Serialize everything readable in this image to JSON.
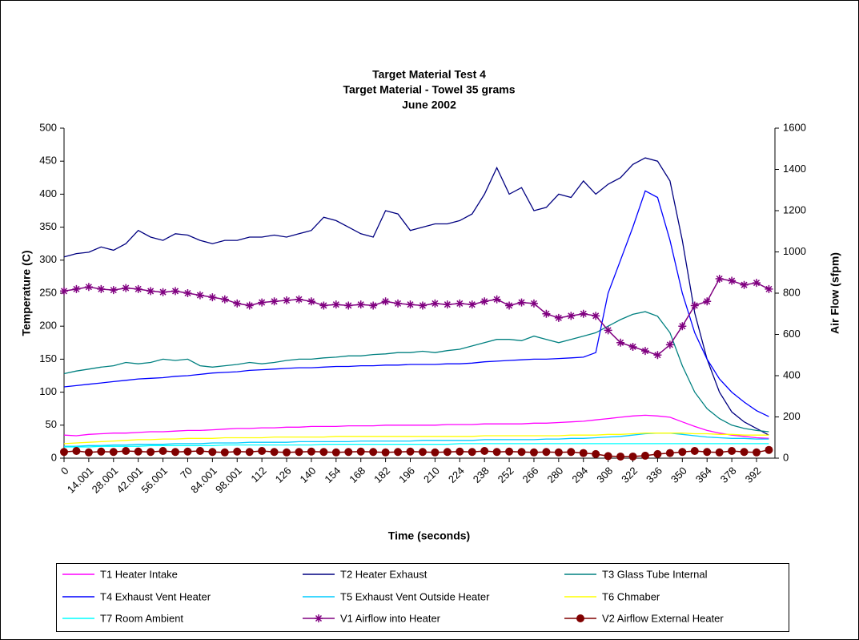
{
  "chart_data": {
    "type": "line",
    "title": [
      "Target Material Test 4",
      "Target Material - Towel 35 grams",
      "June 2002"
    ],
    "x_label": "Time (seconds)",
    "y_label": "Temperature (C)",
    "y2_label": "Air Flow (sfpm)",
    "categories": [
      "0",
      null,
      "14.001",
      null,
      "28.001",
      null,
      "42.001",
      null,
      "56.001",
      null,
      "70",
      null,
      "84.001",
      null,
      "98.001",
      null,
      "112",
      null,
      "126",
      null,
      "140",
      null,
      "154",
      null,
      "168",
      null,
      "182",
      null,
      "196",
      null,
      "210",
      null,
      "224",
      null,
      "238",
      null,
      "252",
      null,
      "266",
      null,
      "280",
      null,
      "294",
      null,
      "308",
      null,
      "322",
      null,
      "336",
      null,
      "350",
      null,
      "364",
      null,
      "378",
      null,
      "392",
      null
    ],
    "ylim": [
      0,
      500
    ],
    "yticks": [
      0,
      50,
      100,
      150,
      200,
      250,
      300,
      350,
      400,
      450,
      500
    ],
    "y2lim": [
      0,
      1600
    ],
    "y2ticks": [
      0,
      200,
      400,
      600,
      800,
      1000,
      1200,
      1400,
      1600
    ],
    "grid": false,
    "legend": "bottom",
    "series": [
      {
        "name": "T1 Heater Intake",
        "color": "#ff00ff",
        "values": [
          35,
          34,
          36,
          37,
          38,
          38,
          39,
          40,
          40,
          41,
          42,
          42,
          43,
          44,
          45,
          45,
          46,
          46,
          47,
          47,
          48,
          48,
          48,
          49,
          49,
          49,
          50,
          50,
          50,
          50,
          50,
          51,
          51,
          51,
          52,
          52,
          52,
          52,
          53,
          53,
          54,
          55,
          56,
          58,
          60,
          62,
          64,
          65,
          64,
          62,
          55,
          48,
          42,
          38,
          35,
          33,
          31,
          30
        ]
      },
      {
        "name": "T2 Heater Exhaust",
        "color": "#000080",
        "values": [
          305,
          310,
          312,
          320,
          315,
          325,
          345,
          335,
          330,
          340,
          338,
          330,
          325,
          330,
          330,
          335,
          335,
          338,
          335,
          340,
          345,
          365,
          360,
          350,
          340,
          335,
          375,
          370,
          345,
          350,
          355,
          355,
          360,
          370,
          400,
          440,
          400,
          410,
          375,
          380,
          400,
          395,
          420,
          400,
          415,
          425,
          445,
          455,
          450,
          420,
          330,
          220,
          150,
          100,
          70,
          55,
          45,
          35
        ]
      },
      {
        "name": "T3 Glass Tube Internal",
        "color": "#008080",
        "values": [
          128,
          132,
          135,
          138,
          140,
          145,
          143,
          145,
          150,
          148,
          150,
          140,
          138,
          140,
          142,
          145,
          143,
          145,
          148,
          150,
          150,
          152,
          153,
          155,
          155,
          157,
          158,
          160,
          160,
          162,
          160,
          163,
          165,
          170,
          175,
          180,
          180,
          178,
          185,
          180,
          175,
          180,
          185,
          190,
          200,
          210,
          218,
          222,
          215,
          190,
          140,
          100,
          75,
          60,
          50,
          45,
          42,
          40
        ]
      },
      {
        "name": "T4 Exhaust Vent Heater",
        "color": "#0000ff",
        "values": [
          108,
          110,
          112,
          114,
          116,
          118,
          120,
          121,
          122,
          124,
          125,
          127,
          129,
          130,
          131,
          133,
          134,
          135,
          136,
          137,
          137,
          138,
          139,
          139,
          140,
          140,
          141,
          141,
          142,
          142,
          142,
          143,
          143,
          144,
          146,
          147,
          148,
          149,
          150,
          150,
          151,
          152,
          153,
          160,
          250,
          300,
          350,
          405,
          395,
          330,
          250,
          190,
          150,
          120,
          100,
          85,
          72,
          63
        ]
      },
      {
        "name": "T5 Exhaust Vent Outside Heater",
        "color": "#00ccff",
        "values": [
          18,
          18,
          19,
          19,
          20,
          20,
          21,
          21,
          21,
          22,
          22,
          22,
          23,
          23,
          23,
          24,
          24,
          24,
          24,
          25,
          25,
          25,
          25,
          25,
          26,
          26,
          26,
          26,
          26,
          27,
          27,
          27,
          27,
          27,
          28,
          28,
          28,
          28,
          28,
          29,
          29,
          30,
          30,
          31,
          32,
          33,
          35,
          37,
          38,
          38,
          36,
          34,
          32,
          31,
          30,
          30,
          29,
          29
        ]
      },
      {
        "name": "T6 Chmaber",
        "color": "#ffff00",
        "values": [
          22,
          23,
          24,
          25,
          26,
          27,
          28,
          28,
          29,
          29,
          30,
          30,
          30,
          31,
          31,
          31,
          31,
          32,
          32,
          32,
          32,
          32,
          33,
          33,
          33,
          33,
          33,
          33,
          33,
          33,
          33,
          33,
          33,
          33,
          34,
          34,
          34,
          34,
          34,
          34,
          34,
          35,
          35,
          35,
          36,
          36,
          37,
          38,
          38,
          38,
          38,
          37,
          37,
          36,
          36,
          35,
          35,
          35
        ]
      },
      {
        "name": "T7 Room Ambient",
        "color": "#00ffff",
        "values": [
          17,
          17,
          17,
          18,
          18,
          18,
          18,
          19,
          19,
          19,
          19,
          19,
          19,
          20,
          20,
          20,
          20,
          20,
          20,
          20,
          20,
          21,
          21,
          21,
          21,
          21,
          21,
          21,
          21,
          21,
          21,
          21,
          22,
          22,
          22,
          22,
          22,
          22,
          22,
          22,
          22,
          22,
          22,
          22,
          22,
          22,
          22,
          22,
          22,
          22,
          22,
          22,
          22,
          22,
          22,
          22,
          22,
          22
        ]
      },
      {
        "name": "V1 Airflow into Heater",
        "color": "#800080",
        "axis": "y2",
        "marker": "star",
        "values": [
          810,
          820,
          830,
          820,
          815,
          825,
          820,
          810,
          805,
          810,
          800,
          790,
          780,
          770,
          750,
          740,
          755,
          760,
          765,
          770,
          760,
          740,
          745,
          740,
          745,
          740,
          760,
          750,
          745,
          740,
          750,
          745,
          750,
          745,
          760,
          770,
          740,
          755,
          750,
          700,
          680,
          690,
          700,
          690,
          620,
          560,
          540,
          520,
          500,
          550,
          640,
          740,
          760,
          870,
          860,
          840,
          850,
          820
        ]
      },
      {
        "name": "V2 Airflow External Heater",
        "color": "#800000",
        "axis": "y2",
        "marker": "circle",
        "values": [
          30,
          35,
          28,
          32,
          30,
          35,
          32,
          30,
          35,
          30,
          32,
          35,
          30,
          28,
          32,
          30,
          35,
          30,
          28,
          30,
          32,
          30,
          28,
          30,
          32,
          30,
          28,
          30,
          32,
          30,
          28,
          30,
          32,
          30,
          35,
          30,
          32,
          30,
          28,
          30,
          28,
          30,
          25,
          20,
          10,
          8,
          8,
          12,
          20,
          25,
          30,
          35,
          30,
          28,
          35,
          30,
          28,
          40
        ]
      }
    ]
  }
}
